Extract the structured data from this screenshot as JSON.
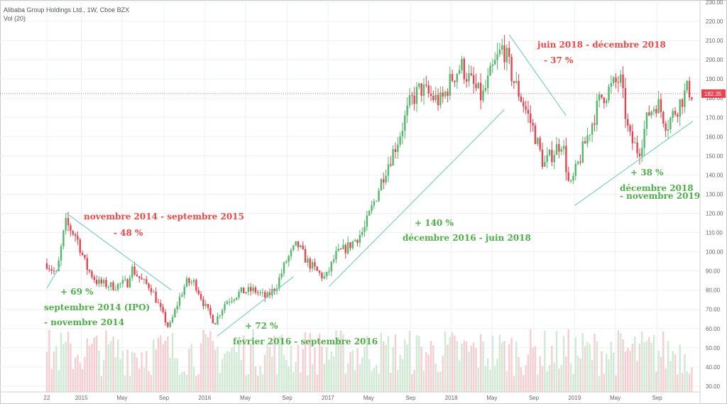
{
  "header": {
    "title": "Alibaba Group Holdings Ltd., 1W, Cboe BZX",
    "volume_label": "Vol (20)"
  },
  "colors": {
    "up": "#53b96a",
    "down": "#e8414f",
    "vol_up": "#cfe9d3",
    "vol_down": "#f6cdd1",
    "trendline": "#7ccfc6",
    "price_line": "#e8414f",
    "grid": "#eef0f3"
  },
  "chart_data": {
    "type": "candlestick",
    "title": "Alibaba Group Holdings Ltd., 1W, Cboe BZX",
    "y_axis": {
      "min": 27,
      "max": 230,
      "side": "right",
      "ticks": [
        30,
        40,
        50,
        60,
        70,
        80,
        90,
        100,
        110,
        120,
        130,
        140,
        150,
        160,
        170,
        180,
        190,
        200,
        210,
        220,
        230
      ]
    },
    "x_axis": {
      "ticks": [
        {
          "label": "22",
          "t": 2014.72
        },
        {
          "label": "2015",
          "t": 2015.0
        },
        {
          "label": "May",
          "t": 2015.33
        },
        {
          "label": "Sep",
          "t": 2015.67
        },
        {
          "label": "2016",
          "t": 2016.0
        },
        {
          "label": "May",
          "t": 2016.33
        },
        {
          "label": "Sep",
          "t": 2016.67
        },
        {
          "label": "2017",
          "t": 2017.0
        },
        {
          "label": "May",
          "t": 2017.33
        },
        {
          "label": "Sep",
          "t": 2017.67
        },
        {
          "label": "2018",
          "t": 2018.0
        },
        {
          "label": "May",
          "t": 2018.33
        },
        {
          "label": "Sep",
          "t": 2018.67
        },
        {
          "label": "2019",
          "t": 2019.0
        },
        {
          "label": "May",
          "t": 2019.33
        },
        {
          "label": "Sep",
          "t": 2019.67
        }
      ],
      "range": [
        2014.72,
        2019.96
      ]
    },
    "last_price": "182.35",
    "last_price_value": 182.35,
    "grid": true,
    "price_path": [
      [
        2014.72,
        94
      ],
      [
        2014.8,
        88
      ],
      [
        2014.87,
        115
      ],
      [
        2014.96,
        108
      ],
      [
        2015.04,
        92
      ],
      [
        2015.13,
        84
      ],
      [
        2015.25,
        82
      ],
      [
        2015.38,
        84
      ],
      [
        2015.4,
        92
      ],
      [
        2015.5,
        84
      ],
      [
        2015.56,
        82
      ],
      [
        2015.64,
        70
      ],
      [
        2015.71,
        60
      ],
      [
        2015.79,
        75
      ],
      [
        2015.85,
        84
      ],
      [
        2015.92,
        84
      ],
      [
        2016.0,
        72
      ],
      [
        2016.08,
        63
      ],
      [
        2016.17,
        74
      ],
      [
        2016.29,
        79
      ],
      [
        2016.4,
        80
      ],
      [
        2016.5,
        76
      ],
      [
        2016.58,
        82
      ],
      [
        2016.66,
        95
      ],
      [
        2016.75,
        104
      ],
      [
        2016.83,
        95
      ],
      [
        2016.92,
        89
      ],
      [
        2016.98,
        86
      ],
      [
        2017.06,
        98
      ],
      [
        2017.17,
        103
      ],
      [
        2017.29,
        111
      ],
      [
        2017.38,
        127
      ],
      [
        2017.46,
        142
      ],
      [
        2017.56,
        157
      ],
      [
        2017.67,
        178
      ],
      [
        2017.75,
        185
      ],
      [
        2017.83,
        181
      ],
      [
        2017.92,
        178
      ],
      [
        2018.0,
        190
      ],
      [
        2018.08,
        197
      ],
      [
        2018.17,
        187
      ],
      [
        2018.25,
        180
      ],
      [
        2018.33,
        194
      ],
      [
        2018.42,
        207
      ],
      [
        2018.5,
        190
      ],
      [
        2018.58,
        178
      ],
      [
        2018.67,
        163
      ],
      [
        2018.75,
        145
      ],
      [
        2018.83,
        152
      ],
      [
        2018.9,
        158
      ],
      [
        2018.96,
        132
      ],
      [
        2019.04,
        148
      ],
      [
        2019.13,
        165
      ],
      [
        2019.21,
        180
      ],
      [
        2019.29,
        185
      ],
      [
        2019.37,
        190
      ],
      [
        2019.44,
        160
      ],
      [
        2019.52,
        152
      ],
      [
        2019.6,
        172
      ],
      [
        2019.67,
        178
      ],
      [
        2019.75,
        166
      ],
      [
        2019.83,
        175
      ],
      [
        2019.92,
        185
      ],
      [
        2019.96,
        182
      ]
    ],
    "trendlines": [
      {
        "from": [
          2014.72,
          81
        ],
        "to": [
          2014.84,
          94
        ]
      },
      {
        "from": [
          2014.88,
          120
        ],
        "to": [
          2015.73,
          80
        ]
      },
      {
        "from": [
          2016.1,
          56
        ],
        "to": [
          2016.72,
          87
        ]
      },
      {
        "from": [
          2017.01,
          82
        ],
        "to": [
          2018.43,
          174
        ]
      },
      {
        "from": [
          2018.47,
          213
        ],
        "to": [
          2018.93,
          171
        ]
      },
      {
        "from": [
          2019.0,
          124
        ],
        "to": [
          2019.96,
          168
        ]
      }
    ]
  },
  "annotations": {
    "ann1": "novembre 2014 - septembre 2015",
    "ann2": "- 48 %",
    "ann3": "+ 69 %",
    "ann4": "septembre 2014 (IPO)",
    "ann5": "- novembre 2014",
    "ann6": "+ 72 %",
    "ann7": "février 2016 - septembre 2016",
    "ann8": "+ 140 %",
    "ann9": "décembre 2016 - juin 2018",
    "ann10": "juin 2018 - décembre 2018",
    "ann11": "- 37 %",
    "ann12": "+ 38 %",
    "ann13": "décembre 2018",
    "ann14": "- novembre 2019"
  }
}
